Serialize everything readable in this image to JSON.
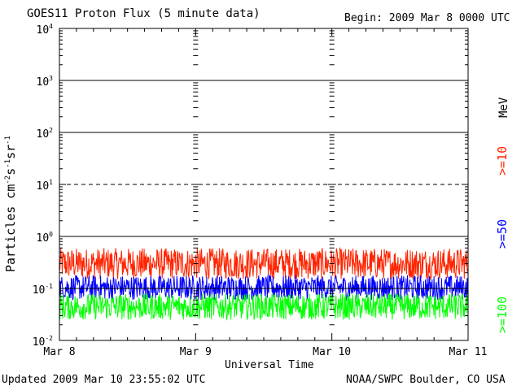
{
  "header": {
    "title": "GOES11 Proton Flux (5 minute data)",
    "begin": "Begin: 2009 Mar 8 0000 UTC"
  },
  "footer": {
    "updated": "Updated 2009 Mar 10 23:55:02 UTC",
    "credit": "NOAA/SWPC Boulder, CO USA"
  },
  "legend": {
    "unit": "MeV",
    "items": [
      {
        "label": ">=10",
        "color": "#ff2400"
      },
      {
        "label": ">=50",
        "color": "#0000ff"
      },
      {
        "label": ">=100",
        "color": "#00ff00"
      }
    ]
  },
  "chart_data": {
    "type": "line",
    "title": "GOES11 Proton Flux (5 minute data)",
    "xlabel": "Universal Time",
    "ylabel": "Particles cm⁻²s⁻¹sr⁻¹",
    "ylabel_parts": [
      "Particles cm",
      "-2",
      "s",
      "-1",
      "sr",
      "-1"
    ],
    "yscale": "log",
    "ylim": [
      0.01,
      10000
    ],
    "yticks": [
      {
        "base": "10",
        "exp": "4"
      },
      {
        "base": "10",
        "exp": "3"
      },
      {
        "base": "10",
        "exp": "2"
      },
      {
        "base": "10",
        "exp": "1"
      },
      {
        "base": "10",
        "exp": "0"
      },
      {
        "base": "10",
        "exp": "-1"
      },
      {
        "base": "10",
        "exp": "-2"
      }
    ],
    "xticks": [
      "Mar 8",
      "Mar 9",
      "Mar 10",
      "Mar 11"
    ],
    "xlim": [
      "2009-03-08 00:00",
      "2009-03-11 00:00"
    ],
    "reference_lines": [
      {
        "y": 1000,
        "style": "solid"
      },
      {
        "y": 100,
        "style": "solid"
      },
      {
        "y": 10,
        "style": "dashed"
      },
      {
        "y": 1,
        "style": "solid"
      },
      {
        "y": 0.1,
        "style": "solid"
      }
    ],
    "series": [
      {
        "name": ">=10 MeV",
        "color": "#ff2400",
        "typical_range": [
          0.15,
          0.6
        ]
      },
      {
        "name": ">=50 MeV",
        "color": "#0000ff",
        "typical_range": [
          0.06,
          0.18
        ]
      },
      {
        "name": ">=100 MeV",
        "color": "#00ff00",
        "typical_range": [
          0.025,
          0.08
        ]
      }
    ]
  }
}
